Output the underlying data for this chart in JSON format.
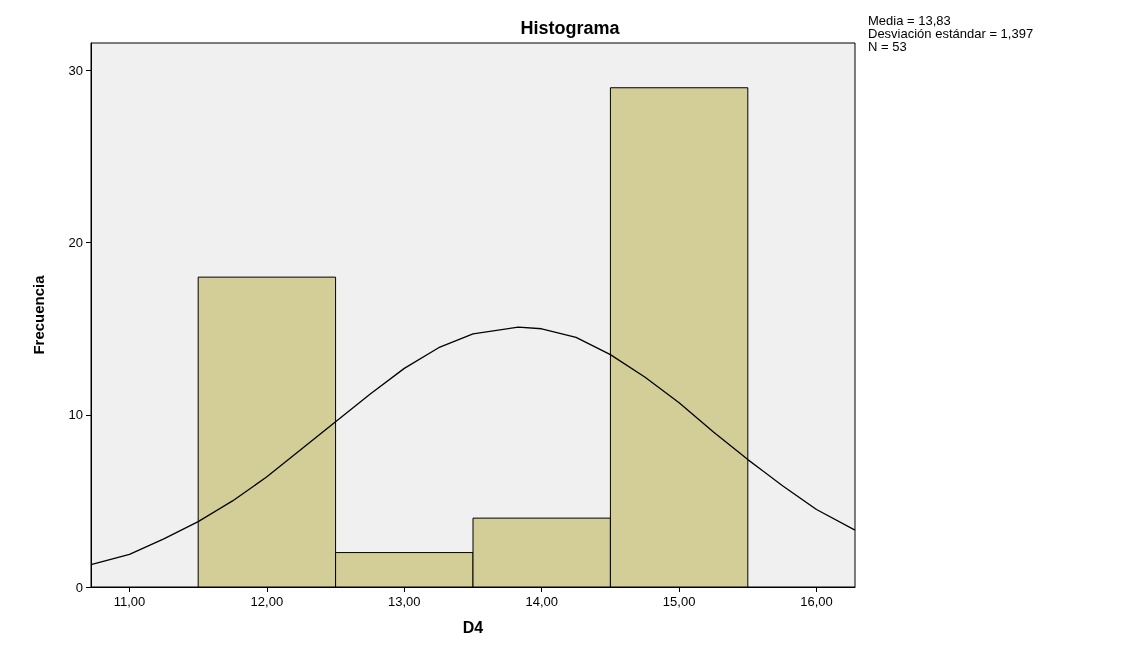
{
  "chart_data": {
    "type": "histogram",
    "title": "Histograma",
    "xlabel": "D4",
    "ylabel": "Frecuencia",
    "bins": [
      11.5,
      12.5,
      13.5,
      14.5,
      15.5
    ],
    "values": [
      18,
      2,
      4,
      29
    ],
    "color": "#d3ce97",
    "xlim": [
      10.72,
      16.28
    ],
    "xticks": [
      {
        "value": 11,
        "label": "11,00"
      },
      {
        "value": 12,
        "label": "12,00"
      },
      {
        "value": 13,
        "label": "13,00"
      },
      {
        "value": 14,
        "label": "14,00"
      },
      {
        "value": 15,
        "label": "15,00"
      },
      {
        "value": 16,
        "label": "16,00"
      }
    ],
    "ylim": [
      0,
      31.6
    ],
    "yticks": [
      0,
      10,
      20,
      30
    ],
    "grid": false,
    "series": [
      {
        "type": "line",
        "color": "#000000",
        "marker": "none",
        "x": [
          10.72,
          11,
          11.25,
          11.5,
          11.75,
          12,
          12.25,
          12.5,
          12.75,
          13,
          13.25,
          13.5,
          13.83,
          14,
          14.25,
          14.5,
          14.75,
          15,
          15.25,
          15.5,
          15.75,
          16,
          16.28
        ],
        "values": [
          1.3,
          1.9,
          2.8,
          3.8,
          5.0,
          6.4,
          8.0,
          9.6,
          11.2,
          12.7,
          13.9,
          14.7,
          15.1,
          15.0,
          14.5,
          13.5,
          12.2,
          10.7,
          9.0,
          7.4,
          5.9,
          4.5,
          3.3
        ]
      }
    ],
    "annotations": [
      "Media = 13,83",
      "Desviación estándar = 1,397",
      "N = 53"
    ]
  }
}
